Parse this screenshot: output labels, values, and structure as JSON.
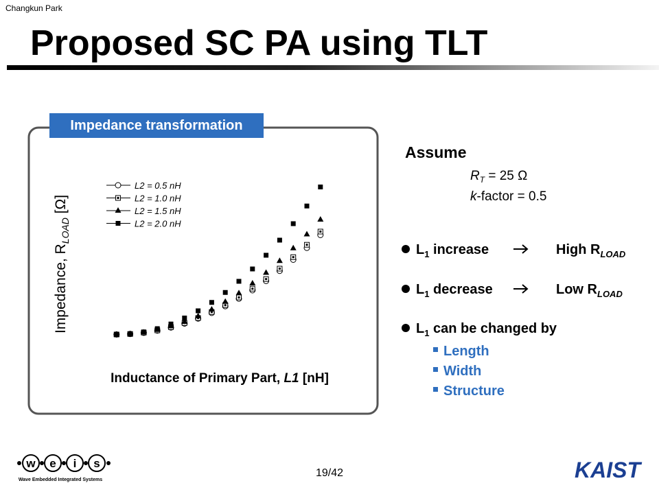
{
  "header": {
    "author": "Changkun Park",
    "title": "Proposed SC PA using TLT"
  },
  "panel_label": "Impedance transformation",
  "chart_data": {
    "type": "scatter",
    "x_label": {
      "text": "Inductance of Primary Part, ",
      "var": "L1",
      "unit": " [nH]"
    },
    "y_label": {
      "text": "Impedance, R",
      "sub": "LOAD",
      "unit": " [Ω]"
    },
    "xlim": [
      0,
      1
    ],
    "ylim": [
      0,
      1
    ],
    "x": [
      0.06,
      0.12,
      0.18,
      0.24,
      0.3,
      0.36,
      0.42,
      0.48,
      0.54,
      0.6,
      0.66,
      0.72,
      0.78,
      0.84,
      0.9,
      0.96
    ],
    "series": [
      {
        "name": "L2 = 0.5 nH",
        "marker": "open-circle",
        "color": "#000000",
        "values": [
          0.05,
          0.053,
          0.06,
          0.073,
          0.091,
          0.114,
          0.143,
          0.176,
          0.215,
          0.259,
          0.308,
          0.362,
          0.421,
          0.486,
          0.555,
          0.63
        ]
      },
      {
        "name": "L2 = 1.0 nH",
        "marker": "dotted-square",
        "color": "#000000",
        "values": [
          0.05,
          0.053,
          0.061,
          0.074,
          0.093,
          0.117,
          0.146,
          0.181,
          0.221,
          0.266,
          0.317,
          0.373,
          0.434,
          0.501,
          0.573,
          0.65
        ]
      },
      {
        "name": "L2 = 1.5 nH",
        "marker": "filled-triangle",
        "color": "#000000",
        "values": [
          0.05,
          0.053,
          0.062,
          0.077,
          0.098,
          0.124,
          0.157,
          0.196,
          0.241,
          0.291,
          0.348,
          0.41,
          0.479,
          0.553,
          0.634,
          0.72
        ]
      },
      {
        "name": "L2 = 2.0 nH",
        "marker": "filled-square",
        "color": "#000000",
        "values": [
          0.05,
          0.054,
          0.065,
          0.084,
          0.111,
          0.146,
          0.188,
          0.237,
          0.295,
          0.36,
          0.432,
          0.512,
          0.6,
          0.696,
          0.799,
          0.91
        ]
      }
    ]
  },
  "assume": {
    "title": "Assume",
    "rt": {
      "var": "R",
      "sub": "T",
      "rest": " =  25 Ω"
    },
    "k": {
      "var": "k",
      "rest": "-factor = 0.5"
    }
  },
  "bullets": [
    {
      "l": "L",
      "sub": "1",
      "text": " increase",
      "result": "High R",
      "result_sub": "LOAD"
    },
    {
      "l": "L",
      "sub": "1",
      "text": " decrease",
      "result": "Low R",
      "result_sub": "LOAD"
    },
    {
      "l": "L",
      "sub": "1",
      "text": " can be changed by",
      "items": [
        "Length",
        "Width",
        "Structure"
      ]
    }
  ],
  "footer": {
    "page": "19/42",
    "logo_letters": [
      "w",
      "e",
      "i",
      "s"
    ],
    "logo_caption": "Wave Embedded Integrated Systems",
    "kaist": "KAIST"
  }
}
